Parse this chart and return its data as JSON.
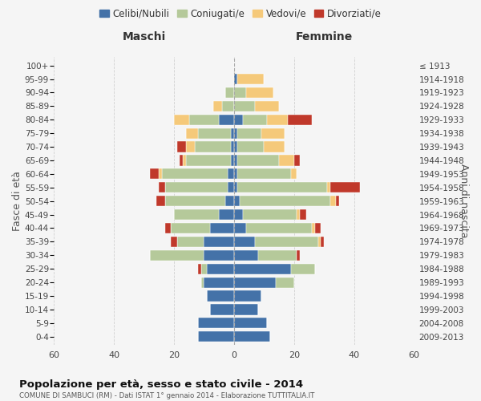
{
  "age_groups": [
    "0-4",
    "5-9",
    "10-14",
    "15-19",
    "20-24",
    "25-29",
    "30-34",
    "35-39",
    "40-44",
    "45-49",
    "50-54",
    "55-59",
    "60-64",
    "65-69",
    "70-74",
    "75-79",
    "80-84",
    "85-89",
    "90-94",
    "95-99",
    "100+"
  ],
  "birth_years": [
    "2009-2013",
    "2004-2008",
    "1999-2003",
    "1994-1998",
    "1989-1993",
    "1984-1988",
    "1979-1983",
    "1974-1978",
    "1969-1973",
    "1964-1968",
    "1959-1963",
    "1954-1958",
    "1949-1953",
    "1944-1948",
    "1939-1943",
    "1934-1938",
    "1929-1933",
    "1924-1928",
    "1919-1923",
    "1914-1918",
    "≤ 1913"
  ],
  "males": {
    "celibi": [
      12,
      12,
      8,
      9,
      10,
      9,
      10,
      10,
      8,
      5,
      3,
      2,
      2,
      1,
      1,
      1,
      5,
      0,
      0,
      0,
      0
    ],
    "coniugati": [
      0,
      0,
      0,
      0,
      1,
      2,
      18,
      9,
      13,
      15,
      20,
      21,
      22,
      15,
      12,
      11,
      10,
      4,
      3,
      0,
      0
    ],
    "vedovi": [
      0,
      0,
      0,
      0,
      0,
      0,
      0,
      0,
      0,
      0,
      0,
      0,
      1,
      1,
      3,
      4,
      5,
      3,
      0,
      0,
      0
    ],
    "divorziati": [
      0,
      0,
      0,
      0,
      0,
      1,
      0,
      2,
      2,
      0,
      3,
      2,
      3,
      1,
      3,
      0,
      0,
      0,
      0,
      0,
      0
    ]
  },
  "females": {
    "nubili": [
      12,
      11,
      8,
      9,
      14,
      19,
      8,
      7,
      4,
      3,
      2,
      1,
      1,
      1,
      1,
      1,
      3,
      0,
      0,
      1,
      0
    ],
    "coniugate": [
      0,
      0,
      0,
      0,
      6,
      8,
      13,
      21,
      22,
      18,
      30,
      30,
      18,
      14,
      9,
      8,
      8,
      7,
      4,
      0,
      0
    ],
    "vedove": [
      0,
      0,
      0,
      0,
      0,
      0,
      0,
      1,
      1,
      1,
      2,
      1,
      2,
      5,
      7,
      8,
      7,
      8,
      9,
      9,
      0
    ],
    "divorziate": [
      0,
      0,
      0,
      0,
      0,
      0,
      1,
      1,
      2,
      2,
      1,
      10,
      0,
      2,
      0,
      0,
      8,
      0,
      0,
      0,
      0
    ]
  },
  "colors": {
    "celibi": "#4472a8",
    "coniugati": "#b5c99a",
    "vedovi": "#f5c97a",
    "divorziati": "#c0392b"
  },
  "title": "Popolazione per età, sesso e stato civile - 2014",
  "subtitle": "COMUNE DI SAMBUCI (RM) - Dati ISTAT 1° gennaio 2014 - Elaborazione TUTTITALIA.IT",
  "ylabel_left": "Fasce di età",
  "ylabel_right": "Anni di nascita",
  "xlabel_left": "Maschi",
  "xlabel_right": "Femmine",
  "xlim": 60,
  "legend_labels": [
    "Celibi/Nubili",
    "Coniugati/e",
    "Vedovi/e",
    "Divorziati/e"
  ],
  "bg_color": "#f5f5f5",
  "grid_color": "#cccccc"
}
